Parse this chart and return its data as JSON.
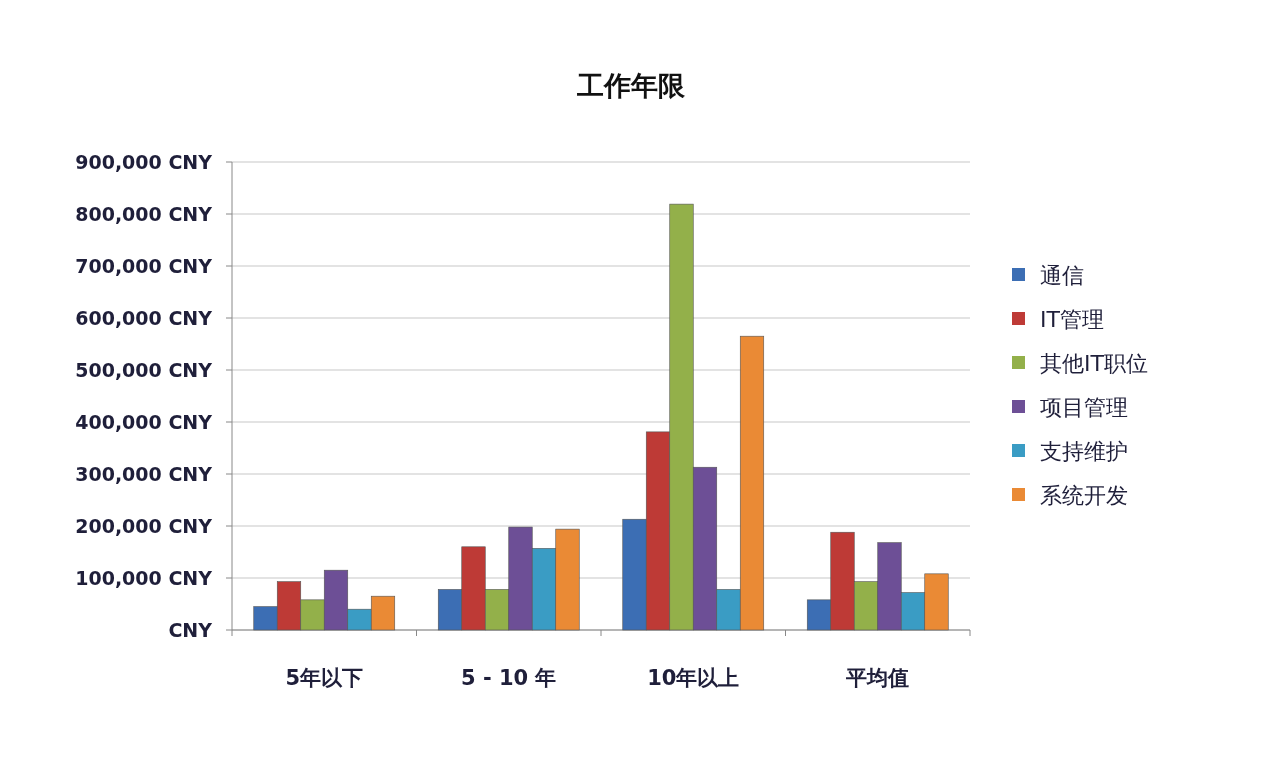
{
  "chart_data": {
    "type": "bar",
    "title": "工作年限",
    "categories": [
      "5年以下",
      "5 - 10 年",
      "10年以上",
      "平均值"
    ],
    "series": [
      {
        "name": "通信",
        "color": "#3c6eb4",
        "values": [
          45000,
          78000,
          213000,
          58000
        ]
      },
      {
        "name": "IT管理",
        "color": "#be3a36",
        "values": [
          93000,
          160000,
          381000,
          188000
        ]
      },
      {
        "name": "其他IT职位",
        "color": "#93b04a",
        "values": [
          58000,
          78000,
          819000,
          93000
        ]
      },
      {
        "name": "项目管理",
        "color": "#6d4f96",
        "values": [
          115000,
          198000,
          313000,
          168000
        ]
      },
      {
        "name": "支持维护",
        "color": "#3a9cc4",
        "values": [
          40000,
          157000,
          78000,
          72000
        ]
      },
      {
        "name": "系统开发",
        "color": "#ea8a35",
        "values": [
          65000,
          194000,
          565000,
          108000
        ]
      }
    ],
    "ylim": [
      0,
      900000
    ],
    "yticks": [
      {
        "value": 0,
        "label": "CNY"
      },
      {
        "value": 100000,
        "label": "100,000 CNY"
      },
      {
        "value": 200000,
        "label": "200,000 CNY"
      },
      {
        "value": 300000,
        "label": "300,000 CNY"
      },
      {
        "value": 400000,
        "label": "400,000 CNY"
      },
      {
        "value": 500000,
        "label": "500,000 CNY"
      },
      {
        "value": 600000,
        "label": "600,000 CNY"
      },
      {
        "value": 700000,
        "label": "700,000 CNY"
      },
      {
        "value": 800000,
        "label": "800,000 CNY"
      },
      {
        "value": 900000,
        "label": "900,000 CNY"
      }
    ],
    "grid": "y",
    "legend": "right"
  }
}
